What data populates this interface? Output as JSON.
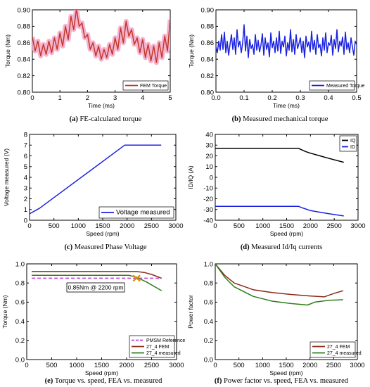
{
  "chart_data": [
    {
      "id": "a",
      "type": "line",
      "caption_letter": "(a)",
      "caption_text": " FE-calculated torque",
      "xlabel": "Time (ms)",
      "ylabel": "Torque (Nm)",
      "xlim": [
        0,
        5
      ],
      "ylim": [
        0.8,
        0.9
      ],
      "xticks": [
        0,
        1,
        2,
        3,
        4,
        5
      ],
      "xtick_labels": [
        "0",
        "1",
        "2",
        "3",
        "4",
        "5"
      ],
      "yticks": [
        0.8,
        0.82,
        0.84,
        0.86,
        0.88,
        0.9
      ],
      "ytick_labels": [
        "0.80",
        "0.82",
        "0.84",
        "0.86",
        "0.88",
        "0.90"
      ],
      "legend_position": "bottom-right",
      "series": [
        {
          "name": "FEM Torque",
          "color": "#c0392b",
          "band_color": "#f6b3d0",
          "x": [
            0.0,
            0.1,
            0.2,
            0.3,
            0.4,
            0.5,
            0.6,
            0.7,
            0.8,
            0.9,
            1.0,
            1.1,
            1.2,
            1.3,
            1.4,
            1.5,
            1.6,
            1.7,
            1.8,
            1.9,
            2.0,
            2.1,
            2.2,
            2.3,
            2.4,
            2.5,
            2.6,
            2.7,
            2.8,
            2.9,
            3.0,
            3.1,
            3.2,
            3.3,
            3.4,
            3.5,
            3.6,
            3.7,
            3.8,
            3.9,
            4.0,
            4.1,
            4.2,
            4.3,
            4.4,
            4.5,
            4.6,
            4.7,
            4.8,
            4.9,
            5.0
          ],
          "y": [
            0.867,
            0.85,
            0.862,
            0.844,
            0.858,
            0.846,
            0.862,
            0.848,
            0.866,
            0.852,
            0.872,
            0.856,
            0.88,
            0.864,
            0.892,
            0.876,
            0.901,
            0.88,
            0.884,
            0.866,
            0.87,
            0.852,
            0.86,
            0.844,
            0.856,
            0.84,
            0.852,
            0.842,
            0.858,
            0.846,
            0.866,
            0.852,
            0.878,
            0.86,
            0.886,
            0.868,
            0.876,
            0.858,
            0.866,
            0.848,
            0.864,
            0.842,
            0.858,
            0.838,
            0.856,
            0.836,
            0.86,
            0.842,
            0.868,
            0.85,
            0.888
          ]
        }
      ]
    },
    {
      "id": "b",
      "type": "line",
      "caption_letter": "(b)",
      "caption_text": " Measured mechanical torque",
      "xlabel": "Time (ms)",
      "ylabel": "Torque (Nm)",
      "xlim": [
        0.0,
        0.5
      ],
      "ylim": [
        0.8,
        0.9
      ],
      "xticks": [
        0.0,
        0.1,
        0.2,
        0.3,
        0.4,
        0.5
      ],
      "xtick_labels": [
        "0.0",
        "0.1",
        "0.2",
        "0.3",
        "0.4",
        "0.5"
      ],
      "yticks": [
        0.8,
        0.82,
        0.84,
        0.86,
        0.88,
        0.9
      ],
      "ytick_labels": [
        "0.80",
        "0.82",
        "0.84",
        "0.86",
        "0.88",
        "0.90"
      ],
      "legend_position": "bottom-right",
      "series": [
        {
          "name": "Measured Torque",
          "color": "#1a22e0",
          "x": [
            0.0,
            0.005,
            0.01,
            0.015,
            0.02,
            0.025,
            0.03,
            0.035,
            0.04,
            0.045,
            0.05,
            0.055,
            0.06,
            0.065,
            0.07,
            0.075,
            0.08,
            0.085,
            0.09,
            0.095,
            0.1,
            0.105,
            0.11,
            0.115,
            0.12,
            0.125,
            0.13,
            0.135,
            0.14,
            0.145,
            0.15,
            0.155,
            0.16,
            0.165,
            0.17,
            0.175,
            0.18,
            0.185,
            0.19,
            0.195,
            0.2,
            0.205,
            0.21,
            0.215,
            0.22,
            0.225,
            0.23,
            0.235,
            0.24,
            0.245,
            0.25,
            0.255,
            0.26,
            0.265,
            0.27,
            0.275,
            0.28,
            0.285,
            0.29,
            0.295,
            0.3,
            0.305,
            0.31,
            0.315,
            0.32,
            0.325,
            0.33,
            0.335,
            0.34,
            0.345,
            0.35,
            0.355,
            0.36,
            0.365,
            0.37,
            0.375,
            0.38,
            0.385,
            0.39,
            0.395,
            0.4,
            0.405,
            0.41,
            0.415,
            0.42,
            0.425,
            0.43,
            0.435,
            0.44,
            0.445,
            0.45,
            0.455,
            0.46,
            0.465,
            0.47,
            0.475,
            0.48,
            0.485,
            0.49,
            0.495,
            0.5
          ],
          "y": [
            0.855,
            0.848,
            0.862,
            0.851,
            0.87,
            0.852,
            0.873,
            0.848,
            0.862,
            0.845,
            0.858,
            0.87,
            0.852,
            0.866,
            0.846,
            0.876,
            0.855,
            0.862,
            0.848,
            0.86,
            0.882,
            0.85,
            0.868,
            0.842,
            0.864,
            0.853,
            0.858,
            0.846,
            0.87,
            0.851,
            0.863,
            0.849,
            0.857,
            0.871,
            0.845,
            0.866,
            0.852,
            0.86,
            0.843,
            0.872,
            0.854,
            0.862,
            0.848,
            0.866,
            0.85,
            0.874,
            0.847,
            0.862,
            0.855,
            0.868,
            0.844,
            0.86,
            0.851,
            0.876,
            0.849,
            0.864,
            0.846,
            0.87,
            0.853,
            0.859,
            0.866,
            0.848,
            0.862,
            0.842,
            0.868,
            0.855,
            0.861,
            0.849,
            0.874,
            0.852,
            0.863,
            0.846,
            0.87,
            0.854,
            0.858,
            0.844,
            0.866,
            0.851,
            0.872,
            0.848,
            0.86,
            0.857,
            0.869,
            0.845,
            0.864,
            0.853,
            0.876,
            0.849,
            0.862,
            0.856,
            0.867,
            0.846,
            0.873,
            0.852,
            0.86,
            0.848,
            0.866,
            0.855,
            0.845,
            0.862,
            0.858
          ]
        }
      ]
    },
    {
      "id": "c",
      "type": "line",
      "caption_letter": "(c)",
      "caption_text": " Measured Phase Voltage",
      "xlabel": "Speed (rpm)",
      "ylabel": "Voltage measured (V)",
      "xlim": [
        0,
        3000
      ],
      "ylim": [
        0,
        8
      ],
      "xticks": [
        0,
        500,
        1000,
        1500,
        2000,
        2500,
        3000
      ],
      "xtick_labels": [
        "0",
        "500",
        "1000",
        "1500",
        "2000",
        "2500",
        "3000"
      ],
      "yticks": [
        0,
        1,
        2,
        3,
        4,
        5,
        6,
        7,
        8
      ],
      "ytick_labels": [
        "0",
        "1",
        "2",
        "3",
        "4",
        "5",
        "6",
        "7",
        "8"
      ],
      "legend_position": "bottom-right",
      "series": [
        {
          "name": "Voltage measured",
          "color": "#1a22e0",
          "x": [
            0,
            200,
            1950,
            2000,
            2700
          ],
          "y": [
            0.6,
            1.1,
            7.0,
            7.0,
            7.0
          ]
        }
      ]
    },
    {
      "id": "d",
      "type": "line",
      "caption_letter": "(d)",
      "caption_text": " Measured Id/Iq currents",
      "xlabel": "Speed (rpm)",
      "ylabel": "ID/IQ (A)",
      "xlim": [
        0,
        3000
      ],
      "ylim": [
        -40,
        40
      ],
      "xticks": [
        0,
        500,
        1000,
        1500,
        2000,
        2500,
        3000
      ],
      "xtick_labels": [
        "0",
        "500",
        "1000",
        "1500",
        "2000",
        "2500",
        "3000"
      ],
      "yticks": [
        -40,
        -30,
        -20,
        -10,
        0,
        10,
        20,
        30,
        40
      ],
      "ytick_labels": [
        "-40",
        "-30",
        "-20",
        "-10",
        "0",
        "10",
        "20",
        "30",
        "40"
      ],
      "legend_position": "top-right",
      "series": [
        {
          "name": "IQ",
          "color": "#000000",
          "x": [
            0,
            1750,
            1800,
            1900,
            2000,
            2200,
            2400,
            2700
          ],
          "y": [
            27,
            27,
            26,
            24,
            22.5,
            20,
            17.5,
            14
          ]
        },
        {
          "name": "ID",
          "color": "#1a22e0",
          "x": [
            0,
            1750,
            1800,
            1900,
            2000,
            2200,
            2400,
            2700
          ],
          "y": [
            -27,
            -27,
            -28,
            -29.5,
            -31,
            -32.5,
            -34,
            -36
          ]
        }
      ]
    },
    {
      "id": "e",
      "type": "line",
      "caption_letter": "(e)",
      "caption_text": " Torque vs. speed, FEA vs. measured",
      "xlabel": "Speed (rpm)",
      "ylabel": "Torque (Nm)",
      "xlim": [
        0,
        3000
      ],
      "ylim": [
        0.0,
        1.0
      ],
      "xticks": [
        0,
        500,
        1000,
        1500,
        2000,
        2500,
        3000
      ],
      "xtick_labels": [
        "0",
        "500",
        "1000",
        "1500",
        "2000",
        "2500",
        "3000"
      ],
      "yticks": [
        0.0,
        0.2,
        0.4,
        0.6,
        0.8,
        1.0
      ],
      "ytick_labels": [
        "0.0",
        "0.2",
        "0.4",
        "0.6",
        "0.8",
        "1.0"
      ],
      "legend_position": "bottom-right",
      "annotation": "0.85Nm @ 2200 rpm",
      "annotation_point": {
        "x": 2200,
        "y": 0.85
      },
      "series": [
        {
          "name": "PMSM Reference",
          "color": "#c040e0",
          "dash": true,
          "x": [
            100,
            2700
          ],
          "y": [
            0.85,
            0.85
          ]
        },
        {
          "name": "27_4 FEM",
          "color": "#8b2a1a",
          "x": [
            100,
            2200,
            2350,
            2500,
            2700
          ],
          "y": [
            0.92,
            0.92,
            0.91,
            0.89,
            0.85
          ]
        },
        {
          "name": "27_4 measured",
          "color": "#2e7d1e",
          "x": [
            100,
            2050,
            2200,
            2400,
            2700
          ],
          "y": [
            0.88,
            0.88,
            0.86,
            0.81,
            0.72
          ]
        }
      ]
    },
    {
      "id": "f",
      "type": "line",
      "caption_letter": "(f)",
      "caption_text": " Power factor vs. speed, FEA vs. measured",
      "xlabel": "Speed (rpm)",
      "ylabel": "Power factor",
      "xlim": [
        0,
        3000
      ],
      "ylim": [
        0.0,
        1.0
      ],
      "xticks": [
        0,
        500,
        1000,
        1500,
        2000,
        2500,
        3000
      ],
      "xtick_labels": [
        "0",
        "500",
        "1000",
        "1500",
        "2000",
        "2500",
        "3000"
      ],
      "yticks": [
        0.0,
        0.2,
        0.4,
        0.6,
        0.8,
        1.0
      ],
      "ytick_labels": [
        "0.0",
        "0.2",
        "0.4",
        "0.6",
        "0.8",
        "1.0"
      ],
      "legend_position": "bottom-right",
      "series": [
        {
          "name": "27_4 FEM",
          "color": "#8b2a1a",
          "x": [
            0,
            200,
            400,
            800,
            1200,
            1600,
            2000,
            2300,
            2500,
            2700
          ],
          "y": [
            1.0,
            0.88,
            0.8,
            0.73,
            0.7,
            0.68,
            0.665,
            0.655,
            0.69,
            0.72
          ]
        },
        {
          "name": "27_4 measured",
          "color": "#2e7d1e",
          "x": [
            0,
            200,
            400,
            800,
            1200,
            1600,
            1950,
            2100,
            2400,
            2700
          ],
          "y": [
            1.0,
            0.86,
            0.76,
            0.66,
            0.61,
            0.585,
            0.57,
            0.6,
            0.62,
            0.625
          ]
        }
      ]
    }
  ]
}
